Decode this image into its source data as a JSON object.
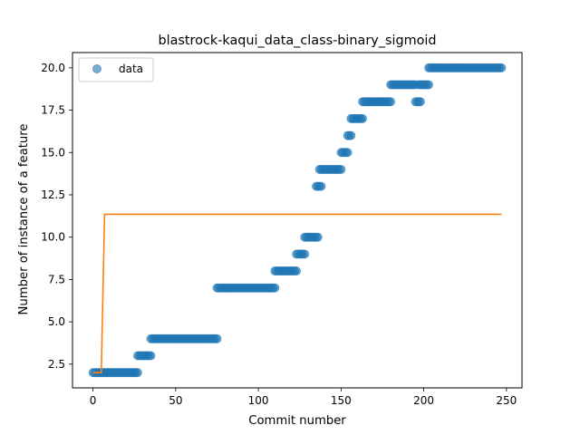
{
  "chart_data": {
    "type": "scatter",
    "title": "blastrock-kaqui_data_class-binary_sigmoid",
    "xlabel": "Commit number",
    "ylabel": "Number of instance of a feature",
    "xlim": [
      -12.4,
      259.4
    ],
    "ylim": [
      1.1,
      20.9
    ],
    "xticks": [
      0,
      50,
      100,
      150,
      200,
      250
    ],
    "yticks": [
      2.5,
      5.0,
      7.5,
      10.0,
      12.5,
      15.0,
      17.5,
      20.0
    ],
    "ytick_labels": [
      "2.5",
      "5.0",
      "7.5",
      "10.0",
      "12.5",
      "15.0",
      "17.5",
      "20.0"
    ],
    "grid": false,
    "legend": {
      "position": "top-left",
      "entries": [
        "data"
      ]
    },
    "colors": {
      "data": "#1f77b4",
      "fit": "#ff7f0e"
    },
    "series": [
      {
        "name": "data",
        "style": "markers",
        "segments": [
          {
            "x_from": 0,
            "x_to": 27,
            "y": 2
          },
          {
            "x_from": 27,
            "x_to": 35,
            "y": 3
          },
          {
            "x_from": 35,
            "x_to": 75,
            "y": 4
          },
          {
            "x_from": 75,
            "x_to": 110,
            "y": 7
          },
          {
            "x_from": 110,
            "x_to": 123,
            "y": 8
          },
          {
            "x_from": 123,
            "x_to": 128,
            "y": 9
          },
          {
            "x_from": 128,
            "x_to": 136,
            "y": 10
          },
          {
            "x_from": 135,
            "x_to": 138,
            "y": 13
          },
          {
            "x_from": 137,
            "x_to": 150,
            "y": 14
          },
          {
            "x_from": 150,
            "x_to": 154,
            "y": 15
          },
          {
            "x_from": 154,
            "x_to": 156,
            "y": 16
          },
          {
            "x_from": 156,
            "x_to": 163,
            "y": 17
          },
          {
            "x_from": 163,
            "x_to": 180,
            "y": 18
          },
          {
            "x_from": 180,
            "x_to": 195,
            "y": 19
          },
          {
            "x_from": 195,
            "x_to": 198,
            "y": 18
          },
          {
            "x_from": 197,
            "x_to": 203,
            "y": 19
          },
          {
            "x_from": 203,
            "x_to": 247,
            "y": 20
          }
        ]
      },
      {
        "style": "line",
        "x": [
          0,
          5,
          7,
          247
        ],
        "y": [
          2,
          2,
          11.35,
          11.35
        ]
      }
    ]
  }
}
